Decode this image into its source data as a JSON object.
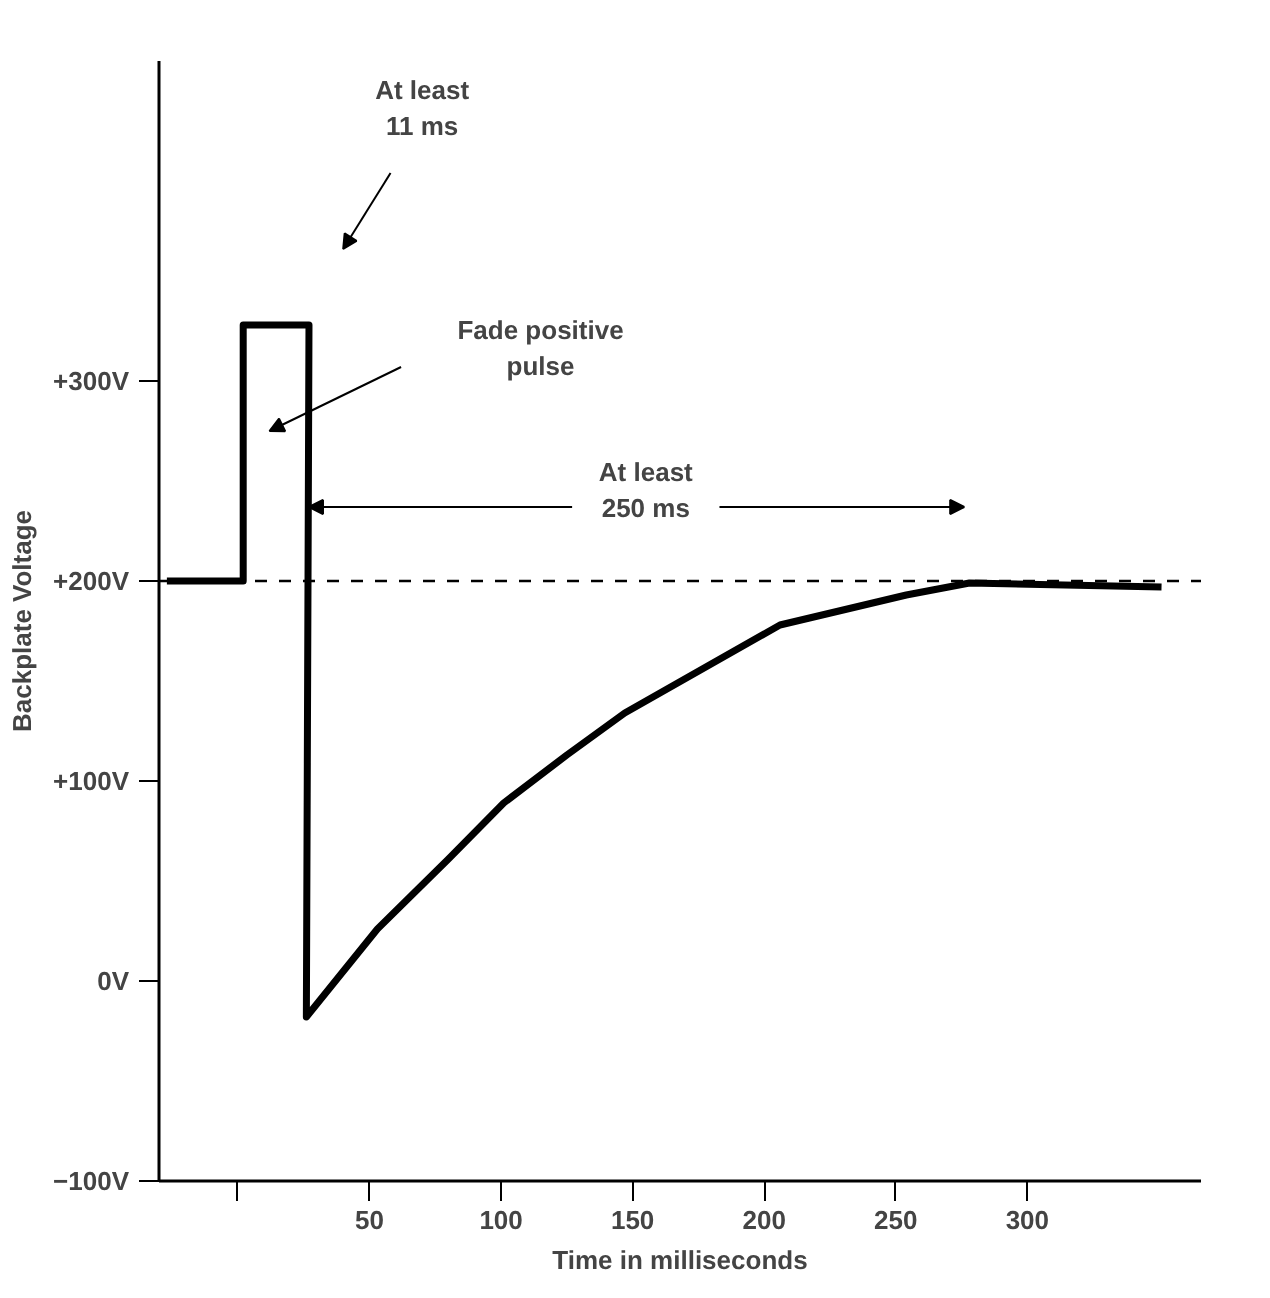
{
  "chart_data": {
    "type": "line",
    "xlabel": "Time in milliseconds",
    "ylabel": "Backplate Voltage",
    "x": [
      -27,
      2,
      2,
      27,
      26,
      53,
      80,
      101,
      125,
      147,
      206,
      254,
      278,
      351
    ],
    "series": [
      {
        "color": "#000000",
        "values": [
          200,
          200,
          328,
          328,
          -18,
          26,
          61,
          89,
          113,
          134,
          178,
          193,
          199,
          197
        ]
      }
    ],
    "xlim": [
      -30,
      366
    ],
    "ylim": [
      -100,
      460
    ],
    "xticks": [
      {
        "value": 0,
        "label": null
      },
      50,
      100,
      150,
      200,
      250,
      300
    ],
    "yticks": [
      {
        "value": -100,
        "label": "−100V"
      },
      {
        "value": 0,
        "label": "0V"
      },
      {
        "value": 100,
        "label": "+100V"
      },
      {
        "value": 200,
        "label": "+200V"
      },
      {
        "value": 300,
        "label": "+300V"
      }
    ],
    "ref_lines": [
      {
        "axis": "y",
        "value": 200,
        "label": null,
        "line_style": "dashed"
      }
    ],
    "annotations": [
      "At least\n11 ms",
      "Fade positive\npulse",
      {
        "text": "At least\n250 ms",
        "x": 27,
        "y": 237
      }
    ],
    "grid": false,
    "marker": "none",
    "line_style": "solid"
  }
}
